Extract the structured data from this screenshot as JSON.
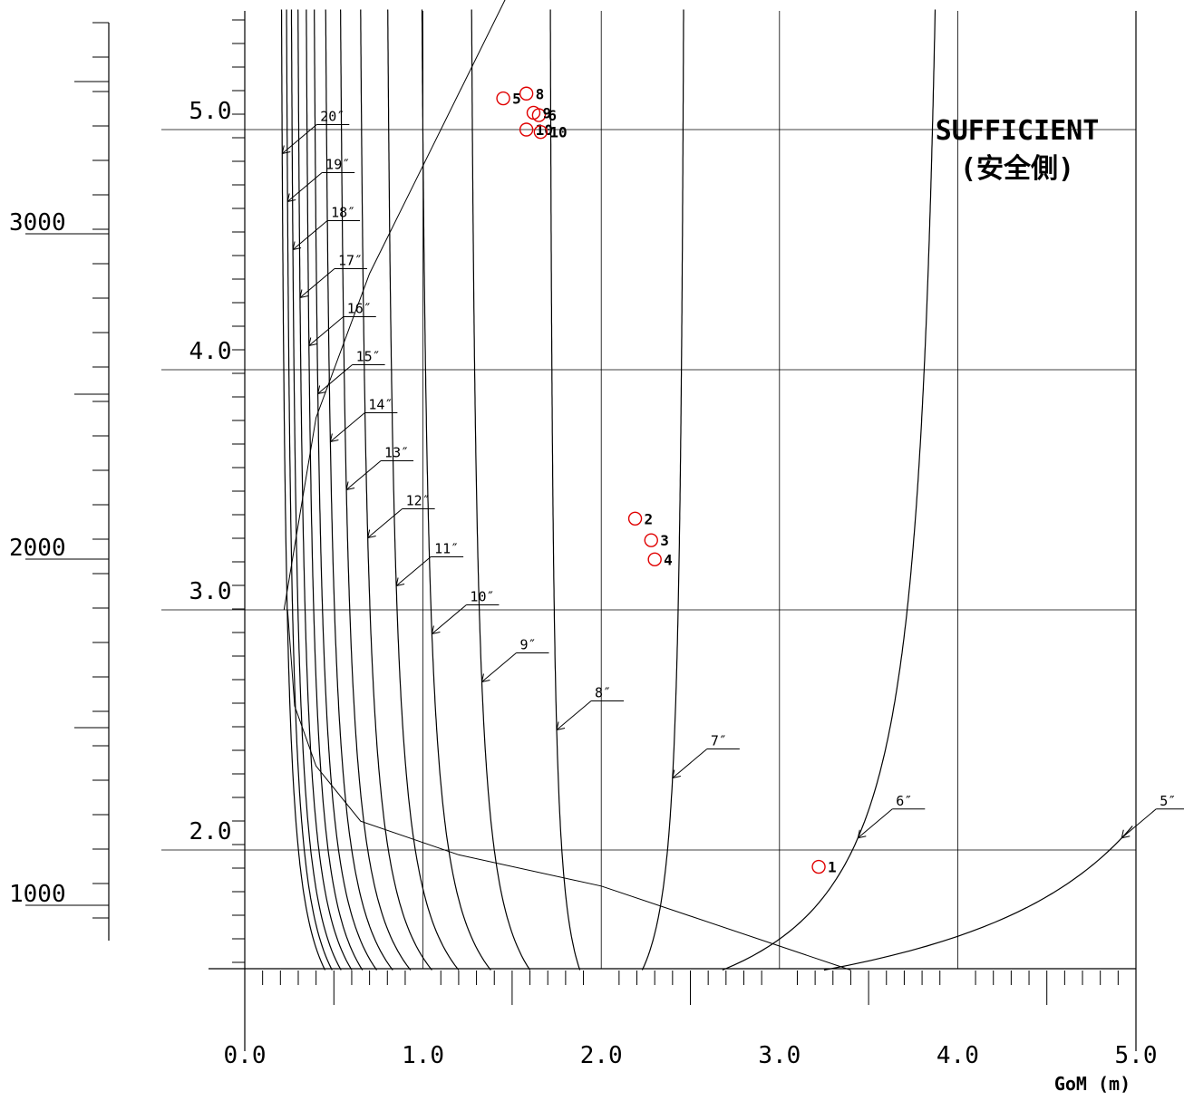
{
  "chart_data": {
    "type": "line",
    "title": "",
    "xlabel": "GoM (m)",
    "ylabel": "",
    "xlim": [
      0,
      5.0
    ],
    "ylim": [
      1.5,
      5.48
    ],
    "grid": true,
    "x_ticks": [
      "0.0",
      "1.0",
      "2.0",
      "3.0",
      "4.0",
      "5.0"
    ],
    "y_ticks": [
      "2.0",
      "3.0",
      "4.0",
      "5.0"
    ],
    "left_scale_ticks": [
      "3000",
      "2000",
      "1000"
    ],
    "region_label_line1": "SUFFICIENT",
    "region_label_line2": "(安全側)",
    "series": [
      {
        "name": "5″",
        "x_min": 3.25,
        "x_at_label": 4.92,
        "y_at_label": 2.05
      },
      {
        "name": "6″",
        "x_min": 2.68,
        "x_at_label": 3.44,
        "y_at_label": 2.05
      },
      {
        "name": "7″",
        "x_min": 2.23,
        "x_at_label": 2.4,
        "y_at_label": 2.3
      },
      {
        "name": "8″",
        "x_min": 1.88,
        "x_at_label": 1.75,
        "y_at_label": 2.5
      },
      {
        "name": "9″",
        "x_min": 1.6,
        "x_at_label": 1.33,
        "y_at_label": 2.7
      },
      {
        "name": "10″",
        "x_min": 1.38,
        "x_at_label": 1.05,
        "y_at_label": 2.9
      },
      {
        "name": "11″",
        "x_min": 1.2,
        "x_at_label": 0.85,
        "y_at_label": 3.1
      },
      {
        "name": "12″",
        "x_min": 1.05,
        "x_at_label": 0.69,
        "y_at_label": 3.3
      },
      {
        "name": "13″",
        "x_min": 0.93,
        "x_at_label": 0.57,
        "y_at_label": 3.5
      },
      {
        "name": "14″",
        "x_min": 0.83,
        "x_at_label": 0.48,
        "y_at_label": 3.7
      },
      {
        "name": "15″",
        "x_min": 0.74,
        "x_at_label": 0.41,
        "y_at_label": 3.9
      },
      {
        "name": "16″",
        "x_min": 0.66,
        "x_at_label": 0.36,
        "y_at_label": 4.1
      },
      {
        "name": "17″",
        "x_min": 0.6,
        "x_at_label": 0.31,
        "y_at_label": 4.3
      },
      {
        "name": "18″",
        "x_min": 0.54,
        "x_at_label": 0.27,
        "y_at_label": 4.5
      },
      {
        "name": "19″",
        "x_min": 0.49,
        "x_at_label": 0.24,
        "y_at_label": 4.7
      },
      {
        "name": "20″",
        "x_min": 0.45,
        "x_at_label": 0.21,
        "y_at_label": 4.9
      }
    ],
    "limit_lines": [
      {
        "points": [
          [
            0.22,
            3.0
          ],
          [
            0.4,
            3.8
          ],
          [
            0.7,
            4.4
          ],
          [
            1.0,
            4.85
          ],
          [
            1.5,
            5.6
          ]
        ]
      },
      {
        "points": [
          [
            0.24,
            3.0
          ],
          [
            0.28,
            2.6
          ],
          [
            0.4,
            2.35
          ],
          [
            0.65,
            2.12
          ],
          [
            1.2,
            1.98
          ],
          [
            2.0,
            1.85
          ],
          [
            3.4,
            1.5
          ]
        ]
      }
    ],
    "points": [
      {
        "label": "1",
        "x": 3.22,
        "y": 1.93
      },
      {
        "label": "2",
        "x": 2.19,
        "y": 3.38
      },
      {
        "label": "3",
        "x": 2.28,
        "y": 3.29
      },
      {
        "label": "4",
        "x": 2.3,
        "y": 3.21
      },
      {
        "label": "5",
        "x": 1.45,
        "y": 5.13
      },
      {
        "label": "6",
        "x": 1.65,
        "y": 5.06
      },
      {
        "label": "8",
        "x": 1.58,
        "y": 5.15
      },
      {
        "label": "9",
        "x": 1.62,
        "y": 5.07
      },
      {
        "label": "10",
        "x": 1.58,
        "y": 5.0
      },
      {
        "label": "10",
        "x": 1.66,
        "y": 4.99
      }
    ]
  }
}
